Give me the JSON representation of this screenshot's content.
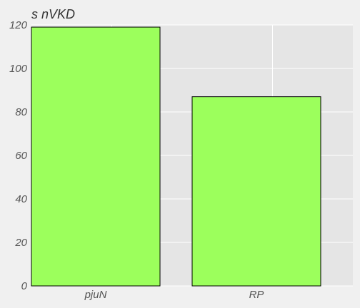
{
  "chart_data": {
    "type": "bar",
    "title": "s nVKD",
    "xlabel": "",
    "ylabel": "",
    "categories": [
      "pjuN",
      "RP"
    ],
    "values": [
      119,
      87
    ],
    "ylim": [
      0,
      120
    ],
    "yticks": [
      0,
      20,
      40,
      60,
      80,
      100,
      120
    ],
    "grid": true,
    "legend": "none",
    "colors": {
      "bar_fill": "#9cff5c",
      "bar_edge": "#000000",
      "plot_background": "#e5e5e5",
      "figure_background": "#f0f0f0",
      "grid": "#ffffff"
    }
  }
}
